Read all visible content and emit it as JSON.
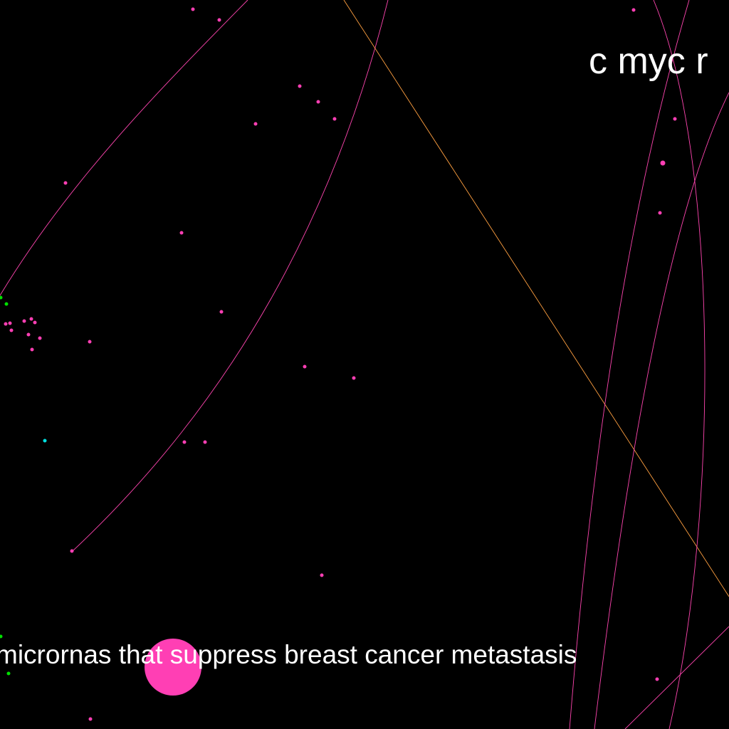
{
  "background_color": "#000000",
  "labels": {
    "top_right": "c myc r",
    "bottom": "micrornas that suppress breast cancer metastasis"
  },
  "colors": {
    "label_text": "#ffffff",
    "node_magenta": "#ff3fb4",
    "node_green": "#00e000",
    "node_cyan": "#00e0e0",
    "edge_magenta": "#ff45b0",
    "edge_orange": "#ffa040"
  }
}
